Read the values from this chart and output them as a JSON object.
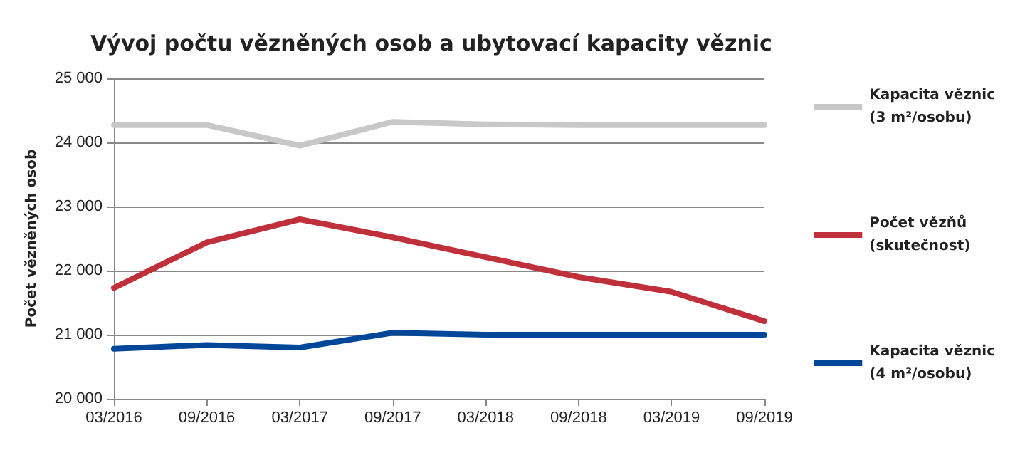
{
  "chart_data": {
    "type": "line",
    "title": "Vývoj počtu vězněných osob a ubytovací kapacity věznic",
    "ylabel": "Počet vězněných osob",
    "categories": [
      "03/2016",
      "09/2016",
      "03/2017",
      "09/2017",
      "03/2018",
      "09/2018",
      "03/2019",
      "09/2019"
    ],
    "series": [
      {
        "name": "Kapacita věznic\n(3 m²/osobu)",
        "color": "#c8c8c8",
        "values": [
          24270,
          24270,
          23950,
          24320,
          24280,
          24270,
          24270,
          24270
        ]
      },
      {
        "name": "Počet vězňů\n(skutečnost)",
        "color": "#c0303a",
        "values": [
          21730,
          22440,
          22800,
          22520,
          22210,
          21900,
          21670,
          21210
        ]
      },
      {
        "name": "Kapacita věznic\n(4 m²/osobu)",
        "color": "#00479a",
        "values": [
          20780,
          20840,
          20800,
          21030,
          21000,
          21000,
          21000,
          21000
        ]
      }
    ],
    "ylim": [
      20000,
      25000
    ],
    "yticks": [
      20000,
      21000,
      22000,
      23000,
      24000,
      25000
    ],
    "grid": "y",
    "legend": "right",
    "marker": "none",
    "line_style": "solid"
  }
}
